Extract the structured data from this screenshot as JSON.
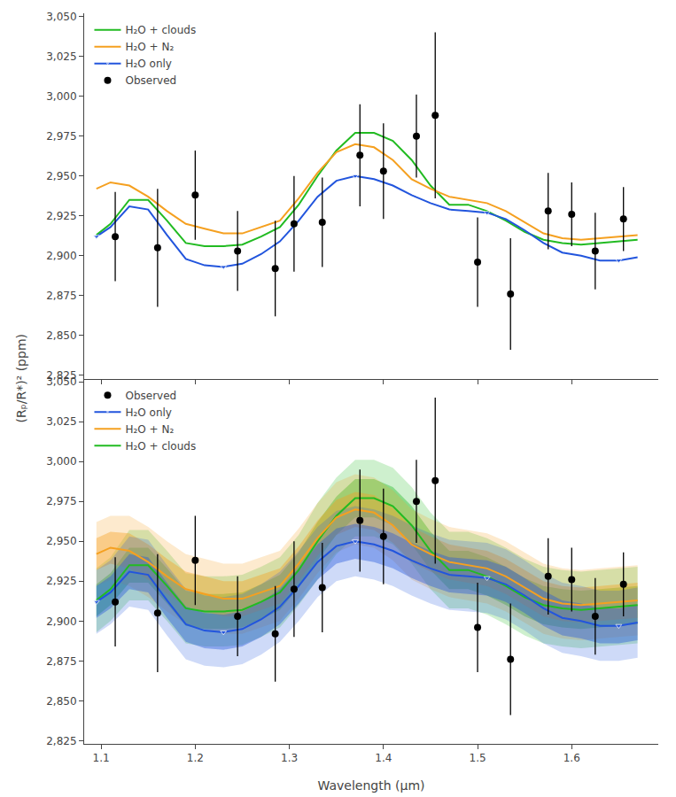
{
  "chart_data": [
    {
      "type": "line",
      "ylabel": "(Rₚ/R*)² (ppm)",
      "xlim": [
        1.082,
        1.692
      ],
      "xticks": [
        1.1,
        1.2,
        1.3,
        1.4,
        1.5,
        1.6
      ],
      "ylim": [
        2823,
        3052
      ],
      "yticks": [
        {
          "value": 2825,
          "label": "2,825"
        },
        {
          "value": 2850,
          "label": "2,850"
        },
        {
          "value": 2875,
          "label": "2,875"
        },
        {
          "value": 2900,
          "label": "2,900"
        },
        {
          "value": 2925,
          "label": "2,925"
        },
        {
          "value": 2950,
          "label": "2,950"
        },
        {
          "value": 2975,
          "label": "2,975"
        },
        {
          "value": 3000,
          "label": "3,000"
        },
        {
          "value": 3025,
          "label": "3,025"
        },
        {
          "value": 3050,
          "label": "3,050"
        }
      ],
      "tick_labels": "y",
      "grid": false,
      "legend": "upper left",
      "series": [
        {
          "name": "H₂O + clouds",
          "type": "line",
          "color": "#22bb22",
          "x": [
            1.095,
            1.11,
            1.13,
            1.15,
            1.17,
            1.19,
            1.21,
            1.23,
            1.25,
            1.27,
            1.29,
            1.31,
            1.33,
            1.35,
            1.37,
            1.39,
            1.41,
            1.43,
            1.45,
            1.47,
            1.49,
            1.51,
            1.53,
            1.55,
            1.57,
            1.59,
            1.61,
            1.63,
            1.65,
            1.67
          ],
          "values": [
            2913,
            2920,
            2935,
            2935,
            2922,
            2908,
            2906,
            2906,
            2907,
            2912,
            2918,
            2932,
            2950,
            2966,
            2977,
            2977,
            2972,
            2960,
            2944,
            2932,
            2932,
            2928,
            2922,
            2915,
            2910,
            2908,
            2907,
            2908,
            2909,
            2910
          ]
        },
        {
          "name": "H₂O + N₂",
          "type": "line",
          "color": "#f5a020",
          "x": [
            1.095,
            1.11,
            1.13,
            1.15,
            1.17,
            1.19,
            1.21,
            1.23,
            1.25,
            1.27,
            1.29,
            1.31,
            1.33,
            1.35,
            1.37,
            1.39,
            1.41,
            1.43,
            1.45,
            1.47,
            1.49,
            1.51,
            1.53,
            1.55,
            1.57,
            1.59,
            1.61,
            1.63,
            1.65,
            1.67
          ],
          "values": [
            2942,
            2946,
            2944,
            2937,
            2928,
            2920,
            2917,
            2914,
            2914,
            2918,
            2922,
            2936,
            2952,
            2965,
            2970,
            2968,
            2960,
            2948,
            2942,
            2937,
            2935,
            2933,
            2928,
            2921,
            2914,
            2911,
            2910,
            2911,
            2912,
            2913
          ]
        },
        {
          "name": "H₂O only",
          "type": "line",
          "color": "#2255dd",
          "marker": "triangle-down",
          "x": [
            1.095,
            1.11,
            1.13,
            1.15,
            1.17,
            1.19,
            1.21,
            1.23,
            1.25,
            1.27,
            1.29,
            1.31,
            1.33,
            1.35,
            1.37,
            1.39,
            1.41,
            1.43,
            1.45,
            1.47,
            1.49,
            1.51,
            1.53,
            1.55,
            1.57,
            1.59,
            1.61,
            1.63,
            1.65,
            1.67
          ],
          "values": [
            2912,
            2918,
            2931,
            2929,
            2913,
            2898,
            2894,
            2893,
            2895,
            2901,
            2909,
            2922,
            2937,
            2947,
            2950,
            2948,
            2944,
            2938,
            2933,
            2929,
            2928,
            2927,
            2923,
            2916,
            2908,
            2902,
            2900,
            2897,
            2897,
            2899
          ]
        },
        {
          "name": "Observed",
          "type": "scatter",
          "color": "#000000",
          "marker": "circle",
          "x": [
            1.115,
            1.16,
            1.2,
            1.245,
            1.285,
            1.305,
            1.335,
            1.375,
            1.4,
            1.435,
            1.455,
            1.5,
            1.535,
            1.575,
            1.6,
            1.625,
            1.655
          ],
          "values": [
            2912,
            2905,
            2938,
            2903,
            2892,
            2920,
            2921,
            2963,
            2953,
            2975,
            2988,
            2896,
            2876,
            2928,
            2926,
            2903,
            2923
          ],
          "yerr_lo": [
            28,
            37,
            28,
            25,
            30,
            30,
            28,
            32,
            30,
            26,
            52,
            28,
            35,
            24,
            20,
            24,
            20
          ],
          "yerr_hi": [
            28,
            37,
            28,
            25,
            30,
            30,
            28,
            32,
            30,
            26,
            52,
            28,
            35,
            24,
            20,
            24,
            20
          ]
        }
      ]
    },
    {
      "type": "line",
      "xlabel": "Wavelength (μm)",
      "xlim": [
        1.082,
        1.692
      ],
      "xticks": [
        1.1,
        1.2,
        1.3,
        1.4,
        1.5,
        1.6
      ],
      "ylim": [
        2823,
        3052
      ],
      "yticks": [
        {
          "value": 2825,
          "label": "2,825"
        },
        {
          "value": 2850,
          "label": "2,850"
        },
        {
          "value": 2875,
          "label": "2,875"
        },
        {
          "value": 2900,
          "label": "2,900"
        },
        {
          "value": 2925,
          "label": "2,925"
        },
        {
          "value": 2950,
          "label": "2,950"
        },
        {
          "value": 2975,
          "label": "2,975"
        },
        {
          "value": 3000,
          "label": "3,000"
        },
        {
          "value": 3025,
          "label": "3,025"
        },
        {
          "value": 3050,
          "label": "3,050"
        }
      ],
      "grid": false,
      "legend": "upper left",
      "series": [
        {
          "name": "H₂O + clouds",
          "type": "line",
          "color": "#22bb22",
          "x": [
            1.095,
            1.11,
            1.13,
            1.15,
            1.17,
            1.19,
            1.21,
            1.23,
            1.25,
            1.27,
            1.29,
            1.31,
            1.33,
            1.35,
            1.37,
            1.39,
            1.41,
            1.43,
            1.45,
            1.47,
            1.49,
            1.51,
            1.53,
            1.55,
            1.57,
            1.59,
            1.61,
            1.63,
            1.65,
            1.67
          ],
          "values": [
            2913,
            2920,
            2935,
            2935,
            2922,
            2908,
            2906,
            2906,
            2907,
            2912,
            2918,
            2932,
            2950,
            2966,
            2977,
            2977,
            2972,
            2960,
            2944,
            2932,
            2932,
            2928,
            2922,
            2915,
            2910,
            2908,
            2907,
            2908,
            2909,
            2910
          ],
          "band_1s_lo": [
            2903,
            2910,
            2924,
            2924,
            2911,
            2897,
            2895,
            2895,
            2896,
            2901,
            2907,
            2921,
            2938,
            2954,
            2965,
            2965,
            2960,
            2948,
            2932,
            2920,
            2920,
            2916,
            2910,
            2903,
            2898,
            2896,
            2895,
            2896,
            2897,
            2898
          ],
          "band_1s_hi": [
            2923,
            2930,
            2946,
            2946,
            2933,
            2919,
            2917,
            2917,
            2918,
            2923,
            2929,
            2943,
            2962,
            2978,
            2989,
            2989,
            2984,
            2972,
            2956,
            2944,
            2944,
            2940,
            2934,
            2927,
            2922,
            2920,
            2919,
            2920,
            2921,
            2922
          ],
          "band_2s_lo": [
            2893,
            2900,
            2913,
            2913,
            2900,
            2886,
            2884,
            2884,
            2885,
            2890,
            2896,
            2910,
            2926,
            2942,
            2953,
            2953,
            2948,
            2936,
            2920,
            2908,
            2908,
            2904,
            2898,
            2891,
            2886,
            2884,
            2883,
            2884,
            2885,
            2886
          ],
          "band_2s_hi": [
            2933,
            2940,
            2957,
            2957,
            2944,
            2930,
            2928,
            2928,
            2929,
            2934,
            2940,
            2954,
            2974,
            2990,
            3001,
            3001,
            2996,
            2984,
            2968,
            2956,
            2956,
            2952,
            2946,
            2939,
            2934,
            2932,
            2931,
            2932,
            2933,
            2934
          ]
        },
        {
          "name": "H₂O + N₂",
          "type": "line",
          "color": "#f5a020",
          "x": [
            1.095,
            1.11,
            1.13,
            1.15,
            1.17,
            1.19,
            1.21,
            1.23,
            1.25,
            1.27,
            1.29,
            1.31,
            1.33,
            1.35,
            1.37,
            1.39,
            1.41,
            1.43,
            1.45,
            1.47,
            1.49,
            1.51,
            1.53,
            1.55,
            1.57,
            1.59,
            1.61,
            1.63,
            1.65,
            1.67
          ],
          "values": [
            2942,
            2946,
            2944,
            2937,
            2928,
            2920,
            2917,
            2914,
            2914,
            2918,
            2922,
            2936,
            2952,
            2965,
            2970,
            2968,
            2960,
            2948,
            2942,
            2937,
            2935,
            2933,
            2928,
            2921,
            2914,
            2911,
            2910,
            2911,
            2912,
            2913
          ],
          "band_1s_lo": [
            2932,
            2936,
            2933,
            2926,
            2917,
            2909,
            2906,
            2903,
            2903,
            2907,
            2911,
            2925,
            2941,
            2954,
            2959,
            2957,
            2949,
            2937,
            2931,
            2926,
            2924,
            2922,
            2917,
            2910,
            2903,
            2900,
            2899,
            2900,
            2901,
            2902
          ],
          "band_1s_hi": [
            2952,
            2956,
            2955,
            2948,
            2939,
            2931,
            2928,
            2925,
            2925,
            2929,
            2933,
            2947,
            2963,
            2976,
            2981,
            2979,
            2971,
            2959,
            2953,
            2948,
            2946,
            2944,
            2939,
            2932,
            2925,
            2922,
            2921,
            2922,
            2923,
            2924
          ],
          "band_2s_lo": [
            2922,
            2926,
            2922,
            2915,
            2906,
            2898,
            2895,
            2892,
            2892,
            2896,
            2900,
            2914,
            2930,
            2943,
            2948,
            2946,
            2938,
            2926,
            2920,
            2915,
            2913,
            2911,
            2906,
            2899,
            2892,
            2889,
            2888,
            2889,
            2890,
            2891
          ],
          "band_2s_hi": [
            2962,
            2966,
            2966,
            2959,
            2950,
            2942,
            2939,
            2936,
            2936,
            2940,
            2944,
            2958,
            2974,
            2987,
            2992,
            2990,
            2982,
            2970,
            2964,
            2959,
            2957,
            2955,
            2950,
            2943,
            2936,
            2933,
            2932,
            2933,
            2934,
            2935
          ]
        },
        {
          "name": "H₂O only",
          "type": "line",
          "color": "#2255dd",
          "marker": "triangle-down",
          "x": [
            1.095,
            1.11,
            1.13,
            1.15,
            1.17,
            1.19,
            1.21,
            1.23,
            1.25,
            1.27,
            1.29,
            1.31,
            1.33,
            1.35,
            1.37,
            1.39,
            1.41,
            1.43,
            1.45,
            1.47,
            1.49,
            1.51,
            1.53,
            1.55,
            1.57,
            1.59,
            1.61,
            1.63,
            1.65,
            1.67
          ],
          "values": [
            2912,
            2918,
            2931,
            2929,
            2913,
            2898,
            2894,
            2893,
            2895,
            2901,
            2909,
            2922,
            2937,
            2947,
            2950,
            2948,
            2944,
            2938,
            2933,
            2929,
            2928,
            2927,
            2923,
            2916,
            2908,
            2902,
            2900,
            2897,
            2897,
            2899
          ],
          "band_1s_lo": [
            2902,
            2908,
            2920,
            2918,
            2902,
            2887,
            2883,
            2882,
            2884,
            2890,
            2898,
            2911,
            2926,
            2936,
            2939,
            2937,
            2933,
            2927,
            2922,
            2918,
            2917,
            2916,
            2912,
            2905,
            2897,
            2891,
            2889,
            2886,
            2886,
            2888
          ],
          "band_1s_hi": [
            2922,
            2928,
            2942,
            2940,
            2924,
            2909,
            2905,
            2904,
            2906,
            2912,
            2920,
            2933,
            2948,
            2958,
            2961,
            2959,
            2955,
            2949,
            2944,
            2940,
            2939,
            2938,
            2934,
            2927,
            2919,
            2913,
            2911,
            2908,
            2908,
            2910
          ],
          "band_2s_lo": [
            2892,
            2898,
            2909,
            2907,
            2891,
            2876,
            2872,
            2871,
            2873,
            2879,
            2887,
            2900,
            2915,
            2925,
            2928,
            2926,
            2922,
            2916,
            2911,
            2907,
            2906,
            2905,
            2901,
            2894,
            2886,
            2880,
            2878,
            2875,
            2875,
            2877
          ],
          "band_2s_hi": [
            2932,
            2938,
            2953,
            2951,
            2935,
            2920,
            2916,
            2915,
            2917,
            2923,
            2931,
            2944,
            2959,
            2969,
            2972,
            2970,
            2966,
            2960,
            2955,
            2951,
            2950,
            2949,
            2945,
            2938,
            2930,
            2924,
            2922,
            2919,
            2919,
            2921
          ]
        },
        {
          "name": "Observed",
          "type": "scatter",
          "color": "#000000",
          "marker": "circle",
          "x": [
            1.115,
            1.16,
            1.2,
            1.245,
            1.285,
            1.305,
            1.335,
            1.375,
            1.4,
            1.435,
            1.455,
            1.5,
            1.535,
            1.575,
            1.6,
            1.625,
            1.655
          ],
          "values": [
            2912,
            2905,
            2938,
            2903,
            2892,
            2920,
            2921,
            2963,
            2953,
            2975,
            2988,
            2896,
            2876,
            2928,
            2926,
            2903,
            2923
          ],
          "yerr_lo": [
            28,
            37,
            28,
            25,
            30,
            30,
            28,
            32,
            30,
            26,
            52,
            28,
            35,
            24,
            20,
            24,
            20
          ],
          "yerr_hi": [
            28,
            37,
            28,
            25,
            30,
            30,
            28,
            32,
            30,
            26,
            52,
            28,
            35,
            24,
            20,
            24,
            20
          ]
        }
      ]
    }
  ]
}
